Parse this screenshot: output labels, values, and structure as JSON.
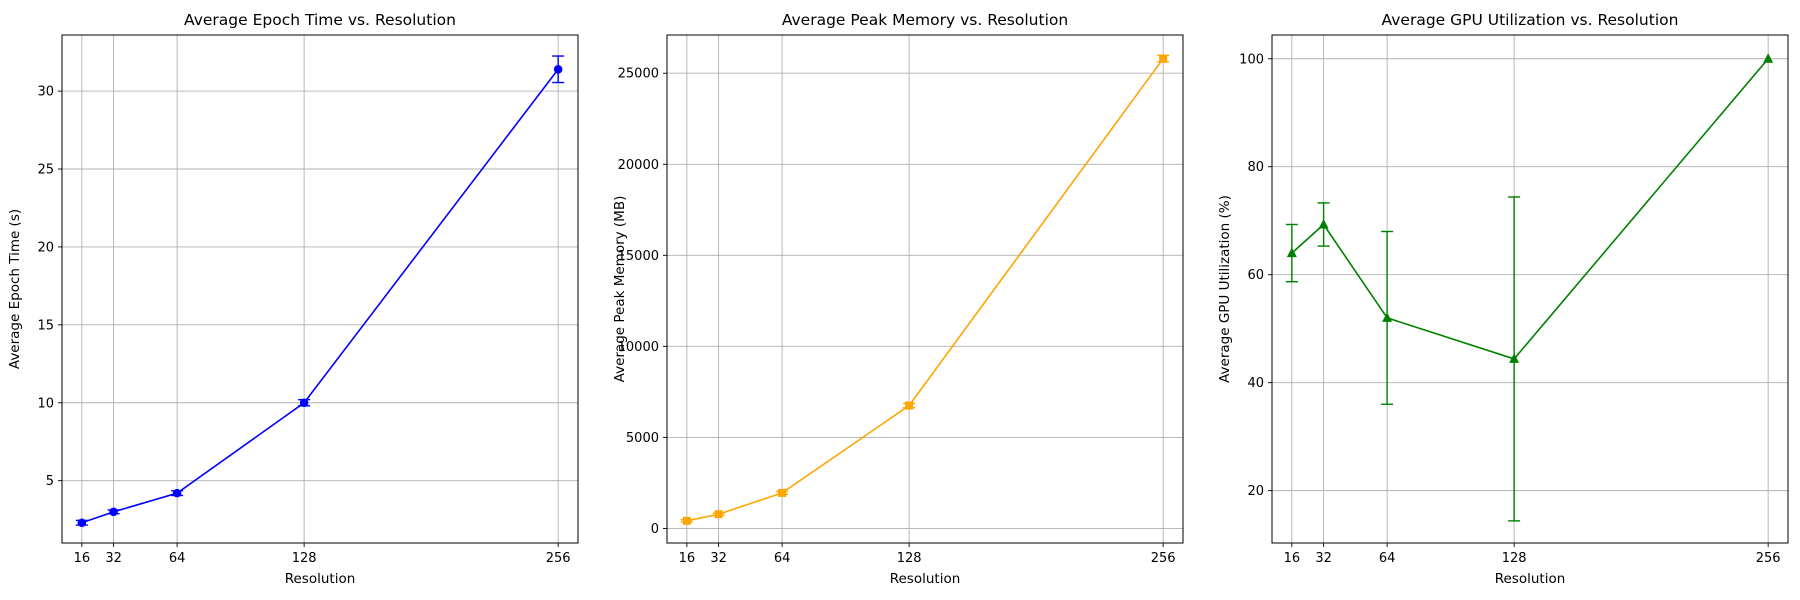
{
  "chart_data": [
    {
      "type": "line",
      "title": "Average Epoch Time vs. Resolution",
      "xlabel": "Resolution",
      "ylabel": "Average Epoch Time (s)",
      "x": [
        16,
        32,
        64,
        128,
        256
      ],
      "xticks": [
        16,
        32,
        64,
        128,
        256
      ],
      "xlim": [
        6,
        266
      ],
      "ylim": [
        1.0,
        33.6
      ],
      "yticks": [
        5,
        10,
        15,
        20,
        25,
        30
      ],
      "grid": true,
      "series": [
        {
          "values": [
            2.3,
            3.0,
            4.2,
            10.0,
            31.4
          ],
          "errors": [
            0.15,
            0.12,
            0.15,
            0.2,
            0.85
          ],
          "color": "#0000ff",
          "marker": "circle"
        }
      ]
    },
    {
      "type": "line",
      "title": "Average Peak Memory vs. Resolution",
      "xlabel": "Resolution",
      "ylabel": "Average Peak Memory (MB)",
      "x": [
        16,
        32,
        64,
        128,
        256
      ],
      "xticks": [
        16,
        32,
        64,
        128,
        256
      ],
      "xlim": [
        6,
        266
      ],
      "ylim": [
        -800,
        27100
      ],
      "yticks": [
        0,
        5000,
        10000,
        15000,
        20000,
        25000
      ],
      "grid": true,
      "series": [
        {
          "values": [
            420,
            780,
            1950,
            6750,
            25800
          ],
          "errors": [
            60,
            60,
            80,
            120,
            180
          ],
          "color": "#ffa500",
          "marker": "square"
        }
      ]
    },
    {
      "type": "line",
      "title": "Average GPU Utilization vs. Resolution",
      "xlabel": "Resolution",
      "ylabel": "Average GPU Utilization (%)",
      "x": [
        16,
        32,
        64,
        128,
        256
      ],
      "xticks": [
        16,
        32,
        64,
        128,
        256
      ],
      "xlim": [
        6,
        266
      ],
      "ylim": [
        10.3,
        104.4
      ],
      "yticks": [
        20,
        40,
        60,
        80,
        100
      ],
      "grid": true,
      "series": [
        {
          "values": [
            64.0,
            69.3,
            52.0,
            44.4,
            100.0
          ],
          "errors": [
            5.3,
            4.0,
            16.0,
            30.0,
            0.0
          ],
          "color": "#008000",
          "marker": "triangle"
        }
      ]
    }
  ]
}
